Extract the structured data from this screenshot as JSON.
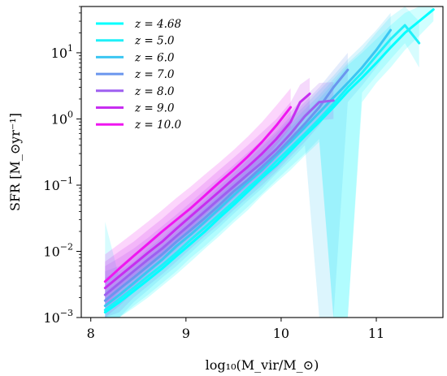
{
  "chart_data": {
    "type": "line",
    "xlabel": "log₁₀(M_vir/M_⊙)",
    "ylabel": "SFR [M_⊙yr⁻¹]",
    "xlim": [
      7.9,
      11.7
    ],
    "ylim": [
      0.001,
      50
    ],
    "yscale": "log",
    "x_ticks": [
      {
        "value": 8,
        "label": "8"
      },
      {
        "value": 9,
        "label": "9"
      },
      {
        "value": 10,
        "label": "10"
      },
      {
        "value": 11,
        "label": "11"
      }
    ],
    "y_ticks": [
      {
        "value": 0.001,
        "base": "10",
        "exp": "−3"
      },
      {
        "value": 0.01,
        "base": "10",
        "exp": "−2"
      },
      {
        "value": 0.1,
        "base": "10",
        "exp": "−1"
      },
      {
        "value": 1,
        "base": "10",
        "exp": "0"
      },
      {
        "value": 10,
        "base": "10",
        "exp": "1"
      }
    ],
    "legend_position": "top-left",
    "grid": false,
    "series": [
      {
        "name": "z = 4.68",
        "color": "#00ffff",
        "x": [
          8.15,
          8.3,
          8.45,
          8.6,
          8.75,
          8.9,
          9.05,
          9.2,
          9.35,
          9.5,
          9.65,
          9.8,
          9.95,
          10.1,
          10.25,
          10.4,
          10.55,
          10.7,
          10.85,
          11.0,
          11.15,
          11.3,
          11.45,
          11.6
        ],
        "y": [
          0.0012,
          0.0017,
          0.0025,
          0.0037,
          0.0055,
          0.0085,
          0.013,
          0.02,
          0.032,
          0.05,
          0.08,
          0.13,
          0.2,
          0.33,
          0.55,
          0.9,
          1.5,
          2.6,
          4.2,
          7.0,
          12.0,
          20.0,
          30.0,
          45.0
        ],
        "band_low": [
          0.001,
          0.001,
          0.0014,
          0.002,
          0.003,
          0.0045,
          0.007,
          0.011,
          0.017,
          0.027,
          0.042,
          0.07,
          0.11,
          0.17,
          0.28,
          0.45,
          0.001,
          0.001,
          1.8,
          3.5,
          6.0,
          11.0,
          18.0,
          30.0
        ],
        "band_high": [
          0.0025,
          0.0035,
          0.005,
          0.008,
          0.012,
          0.018,
          0.028,
          0.045,
          0.07,
          0.11,
          0.18,
          0.28,
          0.45,
          0.75,
          1.2,
          2.0,
          3.5,
          6.5,
          10.0,
          16.0,
          26.0,
          40.0,
          50.0,
          50.0
        ]
      },
      {
        "name": "z = 5.0",
        "color": "#1ff0f8",
        "x": [
          8.15,
          8.3,
          8.45,
          8.6,
          8.75,
          8.9,
          9.05,
          9.2,
          9.35,
          9.5,
          9.65,
          9.8,
          9.95,
          10.1,
          10.25,
          10.4,
          10.55,
          10.7,
          10.85,
          11.0,
          11.15,
          11.3,
          11.45
        ],
        "y": [
          0.0013,
          0.0019,
          0.0028,
          0.0042,
          0.0062,
          0.0095,
          0.015,
          0.023,
          0.036,
          0.056,
          0.09,
          0.14,
          0.23,
          0.37,
          0.6,
          1.0,
          1.7,
          3.0,
          5.0,
          9.0,
          16.0,
          26.0,
          14.0
        ],
        "band_low": [
          0.001,
          0.001,
          0.0015,
          0.0022,
          0.0033,
          0.005,
          0.008,
          0.012,
          0.019,
          0.03,
          0.047,
          0.075,
          0.12,
          0.19,
          0.3,
          0.5,
          0.001,
          0.001,
          2.5,
          4.5,
          8.0,
          14.0,
          6.0
        ],
        "band_high": [
          0.028,
          0.004,
          0.006,
          0.009,
          0.013,
          0.02,
          0.032,
          0.05,
          0.08,
          0.12,
          0.2,
          0.32,
          0.5,
          0.85,
          1.4,
          2.3,
          4.0,
          7.0,
          11.0,
          20.0,
          35.0,
          50.0,
          30.0
        ]
      },
      {
        "name": "z = 6.0",
        "color": "#3bc6f2",
        "x": [
          8.15,
          8.3,
          8.45,
          8.6,
          8.75,
          8.9,
          9.05,
          9.2,
          9.35,
          9.5,
          9.65,
          9.8,
          9.95,
          10.1,
          10.25,
          10.4,
          10.55,
          10.7,
          10.85,
          11.0,
          11.15
        ],
        "y": [
          0.0015,
          0.0022,
          0.0033,
          0.005,
          0.0075,
          0.012,
          0.018,
          0.028,
          0.044,
          0.07,
          0.11,
          0.17,
          0.28,
          0.45,
          0.75,
          1.25,
          2.1,
          3.5,
          6.0,
          11.0,
          22.0
        ],
        "band_low": [
          0.001,
          0.001,
          0.0017,
          0.0026,
          0.004,
          0.006,
          0.0095,
          0.015,
          0.023,
          0.037,
          0.058,
          0.09,
          0.15,
          0.24,
          0.4,
          0.001,
          0.001,
          1.8,
          3.2,
          6.0,
          12.0
        ],
        "band_high": [
          0.004,
          0.005,
          0.007,
          0.011,
          0.016,
          0.025,
          0.038,
          0.06,
          0.095,
          0.15,
          0.24,
          0.38,
          0.6,
          1.0,
          1.6,
          2.7,
          4.5,
          8.0,
          13.0,
          22.0,
          40.0
        ]
      },
      {
        "name": "z = 7.0",
        "color": "#6b96ee",
        "x": [
          8.15,
          8.3,
          8.45,
          8.6,
          8.75,
          8.9,
          9.05,
          9.2,
          9.35,
          9.5,
          9.65,
          9.8,
          9.95,
          10.1,
          10.25,
          10.4,
          10.55,
          10.7
        ],
        "y": [
          0.0018,
          0.0027,
          0.004,
          0.006,
          0.009,
          0.014,
          0.021,
          0.032,
          0.05,
          0.08,
          0.12,
          0.19,
          0.3,
          0.5,
          0.85,
          1.5,
          3.0,
          5.5
        ],
        "band_low": [
          0.001,
          0.0012,
          0.002,
          0.003,
          0.0045,
          0.007,
          0.011,
          0.017,
          0.026,
          0.042,
          0.065,
          0.1,
          0.16,
          0.27,
          0.45,
          0.8,
          1.6,
          3.0
        ],
        "band_high": [
          0.005,
          0.006,
          0.009,
          0.013,
          0.019,
          0.029,
          0.045,
          0.07,
          0.11,
          0.17,
          0.27,
          0.42,
          0.65,
          1.1,
          1.8,
          3.0,
          5.5,
          10.0
        ]
      },
      {
        "name": "z = 8.0",
        "color": "#9e5ff0",
        "x": [
          8.15,
          8.3,
          8.45,
          8.6,
          8.75,
          8.9,
          9.05,
          9.2,
          9.35,
          9.5,
          9.65,
          9.8,
          9.95,
          10.1,
          10.25,
          10.4,
          10.55
        ],
        "y": [
          0.0022,
          0.0033,
          0.005,
          0.0075,
          0.011,
          0.017,
          0.026,
          0.04,
          0.062,
          0.095,
          0.145,
          0.22,
          0.35,
          0.6,
          1.1,
          1.8,
          1.9
        ],
        "band_low": [
          0.001,
          0.0015,
          0.0024,
          0.0036,
          0.0055,
          0.0085,
          0.013,
          0.02,
          0.031,
          0.048,
          0.075,
          0.115,
          0.18,
          0.3,
          0.55,
          0.95,
          1.0
        ],
        "band_high": [
          0.006,
          0.008,
          0.011,
          0.016,
          0.024,
          0.036,
          0.055,
          0.085,
          0.13,
          0.2,
          0.31,
          0.48,
          0.75,
          1.3,
          2.2,
          3.5,
          3.6
        ]
      },
      {
        "name": "z = 9.0",
        "color": "#c72ef0",
        "x": [
          8.15,
          8.3,
          8.45,
          8.6,
          8.75,
          8.9,
          9.05,
          9.2,
          9.35,
          9.5,
          9.65,
          9.8,
          9.95,
          10.1,
          10.2,
          10.3
        ],
        "y": [
          0.0028,
          0.0042,
          0.0063,
          0.0095,
          0.014,
          0.022,
          0.034,
          0.052,
          0.08,
          0.125,
          0.19,
          0.3,
          0.5,
          0.9,
          1.8,
          2.4
        ],
        "band_low": [
          0.0012,
          0.002,
          0.003,
          0.0046,
          0.007,
          0.011,
          0.017,
          0.026,
          0.04,
          0.063,
          0.097,
          0.15,
          0.25,
          0.45,
          0.9,
          1.2
        ],
        "band_high": [
          0.007,
          0.01,
          0.014,
          0.021,
          0.031,
          0.048,
          0.072,
          0.11,
          0.17,
          0.26,
          0.4,
          0.63,
          1.0,
          1.8,
          3.3,
          4.2
        ]
      },
      {
        "name": "z = 10.0",
        "color": "#f016f0",
        "x": [
          8.15,
          8.3,
          8.45,
          8.6,
          8.75,
          8.9,
          9.05,
          9.2,
          9.35,
          9.5,
          9.65,
          9.8,
          9.95,
          10.1
        ],
        "y": [
          0.0035,
          0.0055,
          0.0085,
          0.013,
          0.02,
          0.03,
          0.045,
          0.07,
          0.11,
          0.17,
          0.27,
          0.45,
          0.8,
          1.5
        ],
        "band_low": [
          0.0015,
          0.0025,
          0.004,
          0.006,
          0.0095,
          0.015,
          0.022,
          0.035,
          0.055,
          0.085,
          0.135,
          0.22,
          0.4,
          0.75
        ],
        "band_high": [
          0.009,
          0.013,
          0.019,
          0.028,
          0.042,
          0.064,
          0.095,
          0.145,
          0.22,
          0.34,
          0.54,
          0.9,
          1.6,
          2.9
        ]
      }
    ]
  }
}
